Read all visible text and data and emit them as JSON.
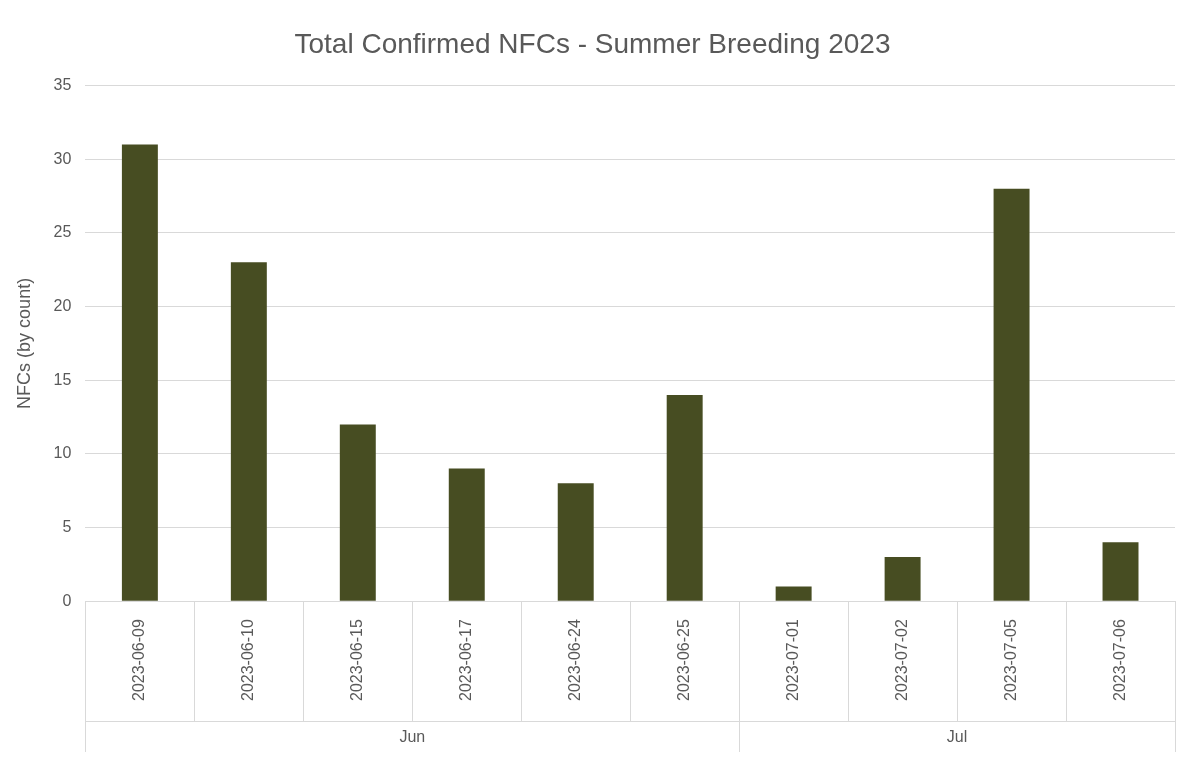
{
  "chart_data": {
    "type": "bar",
    "title": "Total Confirmed NFCs - Summer Breeding 2023",
    "ylabel": "NFCs (by count)",
    "categories": [
      "2023-06-09",
      "2023-06-10",
      "2023-06-15",
      "2023-06-17",
      "2023-06-24",
      "2023-06-25",
      "2023-07-01",
      "2023-07-02",
      "2023-07-05",
      "2023-07-06"
    ],
    "values": [
      31,
      23,
      12,
      9,
      8,
      14,
      1,
      3,
      28,
      4
    ],
    "color": "#474d22",
    "ylim": [
      0,
      35
    ],
    "yticks": [
      0,
      5,
      10,
      15,
      20,
      25,
      30,
      35
    ],
    "grid": "y",
    "annotations": [
      "Jun",
      "Jul"
    ]
  }
}
